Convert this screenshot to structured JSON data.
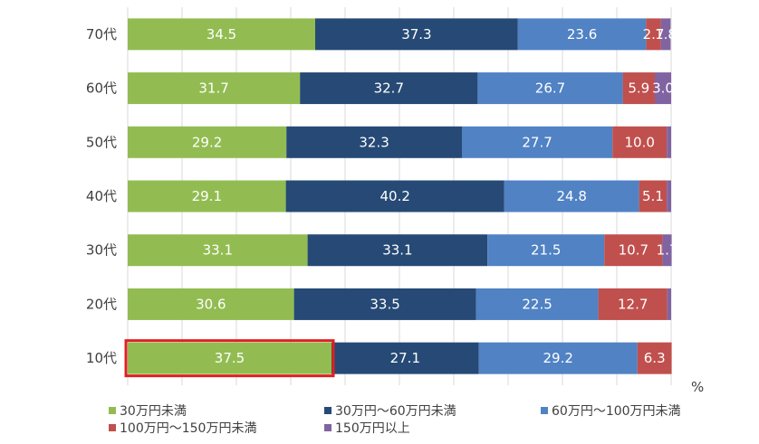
{
  "chart_data": {
    "type": "bar",
    "orientation": "horizontal",
    "stacked": true,
    "categories": [
      "70代",
      "60代",
      "50代",
      "40代",
      "30代",
      "20代",
      "10代"
    ],
    "series": [
      {
        "name": "30万円未満",
        "color": "#92BC51",
        "values": [
          34.5,
          31.7,
          29.2,
          29.1,
          33.1,
          30.6,
          37.5
        ]
      },
      {
        "name": "30万円～60万円未満",
        "color": "#264A75",
        "values": [
          37.3,
          32.7,
          32.3,
          40.2,
          33.1,
          33.5,
          27.1
        ]
      },
      {
        "name": "60万円～100万円未満",
        "color": "#5082C4",
        "values": [
          23.6,
          26.7,
          27.7,
          24.8,
          21.5,
          22.5,
          29.2
        ]
      },
      {
        "name": "100万円～150万円未満",
        "color": "#C0504D",
        "values": [
          2.7,
          5.9,
          10.0,
          5.1,
          10.7,
          12.7,
          6.3
        ]
      },
      {
        "name": "150万円以上",
        "color": "#8064A2",
        "values": [
          1.8,
          3.0,
          0.8,
          0.8,
          1.7,
          0.7,
          0.0
        ]
      }
    ],
    "data_labels": [
      [
        "34.5",
        "37.3",
        "23.6",
        "2.7",
        "1.8"
      ],
      [
        "31.7",
        "32.7",
        "26.7",
        "5.9",
        "3.0"
      ],
      [
        "29.2",
        "32.3",
        "27.7",
        "10.0",
        ""
      ],
      [
        "29.1",
        "40.2",
        "24.8",
        "5.1",
        ""
      ],
      [
        "33.1",
        "33.1",
        "21.5",
        "10.7",
        "1.7"
      ],
      [
        "30.6",
        "33.5",
        "22.5",
        "12.7",
        ""
      ],
      [
        "37.5",
        "27.1",
        "29.2",
        "6.3",
        ""
      ]
    ],
    "unit_label": "%",
    "xlim": [
      0,
      100
    ],
    "grid": "vertical",
    "legend_position": "bottom",
    "highlight": {
      "category": "10代",
      "series": "30万円未満",
      "color": "#E02020"
    }
  }
}
